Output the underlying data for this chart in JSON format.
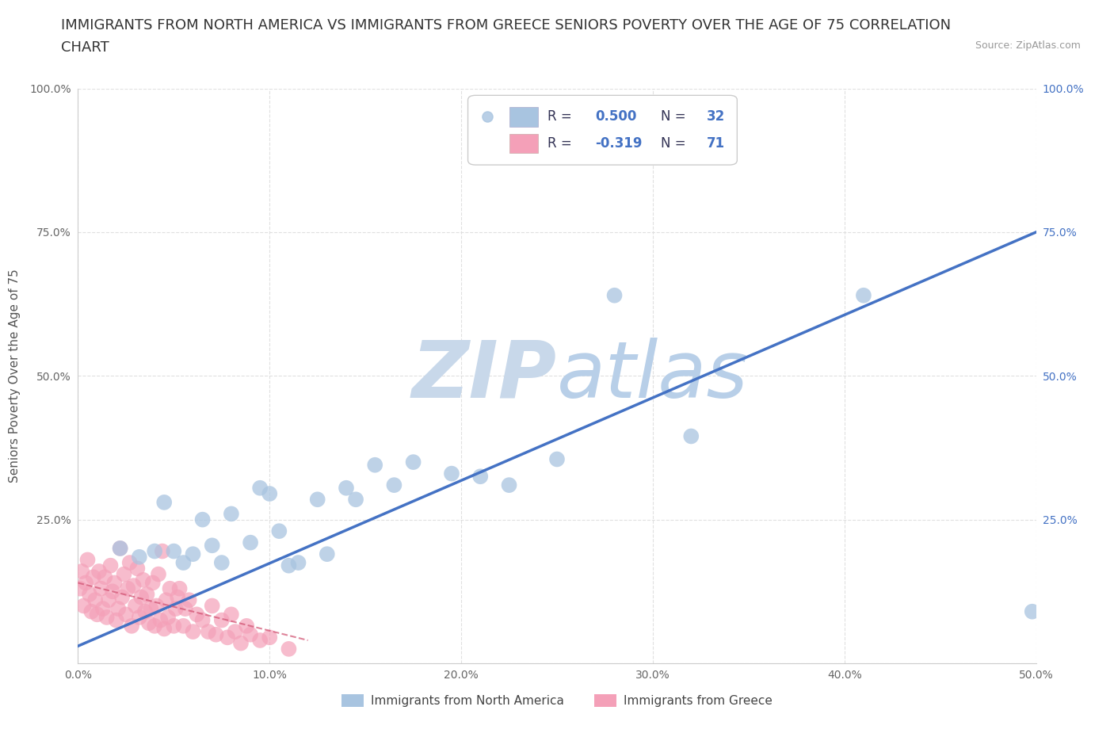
{
  "title_line1": "IMMIGRANTS FROM NORTH AMERICA VS IMMIGRANTS FROM GREECE SENIORS POVERTY OVER THE AGE OF 75 CORRELATION",
  "title_line2": "CHART",
  "source_text": "Source: ZipAtlas.com",
  "ylabel": "Seniors Poverty Over the Age of 75",
  "xlim": [
    0.0,
    0.5
  ],
  "ylim": [
    0.0,
    1.0
  ],
  "xticks": [
    0.0,
    0.1,
    0.2,
    0.3,
    0.4,
    0.5
  ],
  "yticks": [
    0.0,
    0.25,
    0.5,
    0.75,
    1.0
  ],
  "xticklabels": [
    "0.0%",
    "10.0%",
    "20.0%",
    "30.0%",
    "40.0%",
    "50.0%"
  ],
  "yticklabels": [
    "",
    "25.0%",
    "50.0%",
    "75.0%",
    "100.0%"
  ],
  "blue_R": 0.5,
  "blue_N": 32,
  "pink_R": -0.319,
  "pink_N": 71,
  "blue_color": "#a8c4e0",
  "blue_line_color": "#4472c4",
  "pink_color": "#f4a0b8",
  "pink_line_color": "#d05070",
  "blue_scatter_x": [
    0.022,
    0.032,
    0.04,
    0.045,
    0.05,
    0.055,
    0.06,
    0.065,
    0.07,
    0.075,
    0.08,
    0.09,
    0.095,
    0.1,
    0.105,
    0.11,
    0.115,
    0.125,
    0.13,
    0.14,
    0.145,
    0.155,
    0.165,
    0.175,
    0.195,
    0.21,
    0.225,
    0.25,
    0.28,
    0.32,
    0.41,
    0.498
  ],
  "blue_scatter_y": [
    0.2,
    0.185,
    0.195,
    0.28,
    0.195,
    0.175,
    0.19,
    0.25,
    0.205,
    0.175,
    0.26,
    0.21,
    0.305,
    0.295,
    0.23,
    0.17,
    0.175,
    0.285,
    0.19,
    0.305,
    0.285,
    0.345,
    0.31,
    0.35,
    0.33,
    0.325,
    0.31,
    0.355,
    0.64,
    0.395,
    0.64,
    0.09
  ],
  "pink_scatter_x": [
    0.001,
    0.002,
    0.003,
    0.004,
    0.005,
    0.006,
    0.007,
    0.008,
    0.009,
    0.01,
    0.011,
    0.012,
    0.013,
    0.014,
    0.015,
    0.016,
    0.017,
    0.018,
    0.019,
    0.02,
    0.021,
    0.022,
    0.023,
    0.024,
    0.025,
    0.026,
    0.027,
    0.028,
    0.029,
    0.03,
    0.031,
    0.032,
    0.033,
    0.034,
    0.035,
    0.036,
    0.037,
    0.038,
    0.039,
    0.04,
    0.041,
    0.042,
    0.043,
    0.044,
    0.045,
    0.046,
    0.047,
    0.048,
    0.05,
    0.051,
    0.052,
    0.053,
    0.055,
    0.056,
    0.058,
    0.06,
    0.062,
    0.065,
    0.068,
    0.07,
    0.072,
    0.075,
    0.078,
    0.08,
    0.082,
    0.085,
    0.088,
    0.09,
    0.095,
    0.1,
    0.11
  ],
  "pink_scatter_y": [
    0.13,
    0.16,
    0.1,
    0.14,
    0.18,
    0.12,
    0.09,
    0.15,
    0.11,
    0.085,
    0.16,
    0.13,
    0.095,
    0.15,
    0.08,
    0.11,
    0.17,
    0.125,
    0.14,
    0.075,
    0.095,
    0.2,
    0.115,
    0.155,
    0.085,
    0.13,
    0.175,
    0.065,
    0.135,
    0.1,
    0.165,
    0.08,
    0.115,
    0.145,
    0.09,
    0.12,
    0.07,
    0.095,
    0.14,
    0.065,
    0.1,
    0.155,
    0.075,
    0.195,
    0.06,
    0.11,
    0.08,
    0.13,
    0.065,
    0.095,
    0.115,
    0.13,
    0.065,
    0.095,
    0.11,
    0.055,
    0.085,
    0.075,
    0.055,
    0.1,
    0.05,
    0.075,
    0.045,
    0.085,
    0.055,
    0.035,
    0.065,
    0.05,
    0.04,
    0.045,
    0.025
  ],
  "blue_trend_x": [
    0.0,
    0.5
  ],
  "blue_trend_y": [
    0.03,
    0.75
  ],
  "pink_trend_x": [
    0.0,
    0.12
  ],
  "pink_trend_y": [
    0.14,
    0.04
  ],
  "watermark_top": "ZIP",
  "watermark_bot": "atlas",
  "watermark_color": "#c8d8ea",
  "legend_label_blue": "Immigrants from North America",
  "legend_label_pink": "Immigrants from Greece",
  "title_fontsize": 13,
  "axis_label_fontsize": 11,
  "tick_fontsize": 10,
  "background_color": "#ffffff",
  "grid_color": "#dddddd",
  "legend_R_color": "#4472c4",
  "legend_N_color": "#4472c4",
  "legend_text_color": "#333355"
}
